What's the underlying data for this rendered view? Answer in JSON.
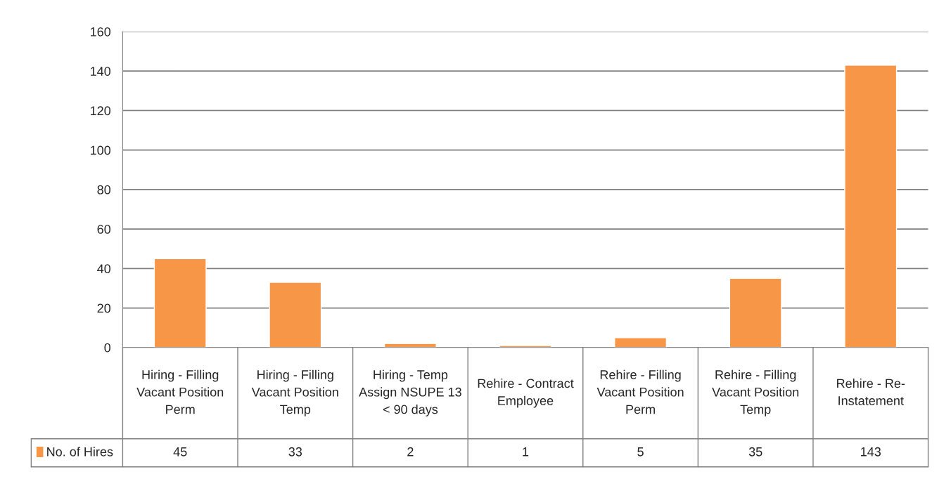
{
  "chart_data": {
    "type": "bar",
    "categories": [
      "Hiring - Filling\nVacant Position\nPerm",
      "Hiring - Filling\nVacant Position\nTemp",
      "Hiring - Temp\nAssign NSUPE 13\n< 90 days",
      "Rehire - Contract\nEmployee",
      "Rehire - Filling\nVacant Position\nPerm",
      "Rehire - Filling\nVacant Position\nTemp",
      "Rehire - Re-\nInstatement"
    ],
    "series": [
      {
        "name": "No. of Hires",
        "color": "#f79646",
        "values": [
          45,
          33,
          2,
          1,
          5,
          35,
          143
        ]
      }
    ],
    "ylim": [
      0,
      160
    ],
    "yticks": [
      0,
      20,
      40,
      60,
      80,
      100,
      120,
      140,
      160
    ],
    "grid": "y",
    "legend": "bottom left",
    "data_labels": true
  }
}
